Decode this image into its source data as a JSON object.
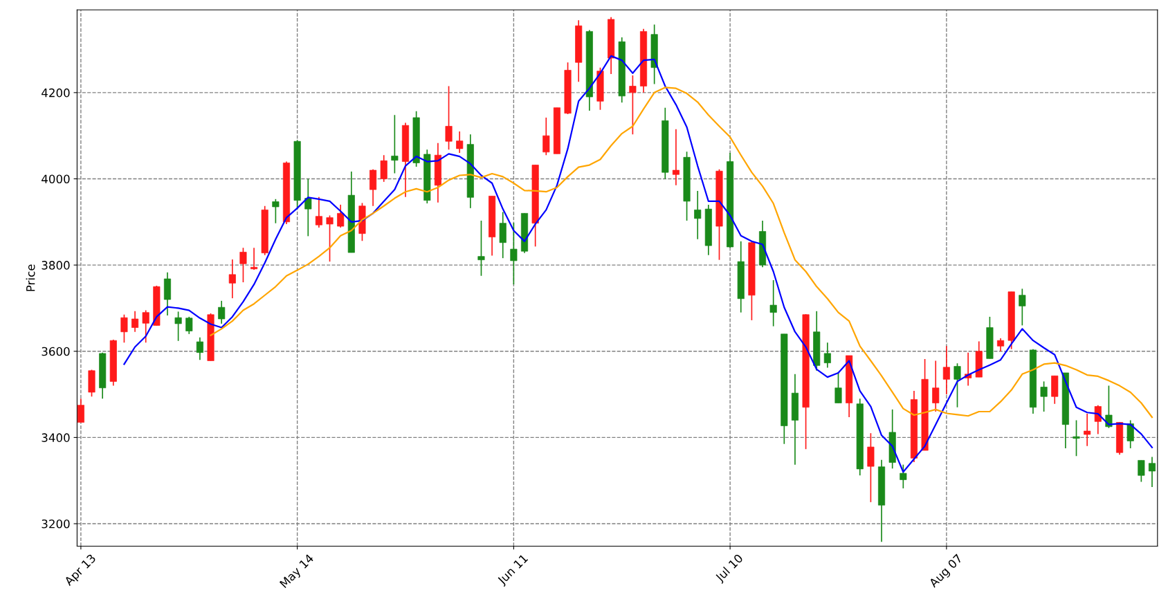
{
  "chart_data": {
    "type": "candlestick",
    "ylabel": "Price",
    "categories": [
      "Apr 13",
      null,
      null,
      null,
      null,
      null,
      null,
      null,
      null,
      null,
      null,
      null,
      null,
      null,
      null,
      null,
      null,
      null,
      null,
      null,
      "May 14",
      null,
      null,
      null,
      null,
      null,
      null,
      null,
      null,
      null,
      null,
      null,
      null,
      null,
      null,
      null,
      null,
      null,
      null,
      null,
      "Jun 11",
      null,
      null,
      null,
      null,
      null,
      null,
      null,
      null,
      null,
      null,
      null,
      null,
      null,
      null,
      null,
      null,
      null,
      null,
      null,
      "Jul 10",
      null,
      null,
      null,
      null,
      null,
      null,
      null,
      null,
      null,
      null,
      null,
      null,
      null,
      null,
      null,
      null,
      null,
      null,
      null,
      "Aug 07",
      null,
      null,
      null,
      null,
      null,
      null,
      null,
      null,
      null,
      null,
      null,
      null,
      null,
      null,
      null,
      null,
      null,
      null,
      null
    ],
    "ohlc": [
      [
        3435,
        3490,
        3435,
        3475
      ],
      [
        3505,
        3557,
        3495,
        3555
      ],
      [
        3595,
        3597,
        3490,
        3515
      ],
      [
        3530,
        3627,
        3520,
        3625
      ],
      [
        3645,
        3685,
        3620,
        3678
      ],
      [
        3655,
        3693,
        3645,
        3675
      ],
      [
        3665,
        3695,
        3620,
        3690
      ],
      [
        3660,
        3752,
        3660,
        3750
      ],
      [
        3768,
        3783,
        3683,
        3720
      ],
      [
        3678,
        3692,
        3624,
        3664
      ],
      [
        3677,
        3680,
        3640,
        3647
      ],
      [
        3622,
        3632,
        3580,
        3597
      ],
      [
        3578,
        3688,
        3578,
        3685
      ],
      [
        3702,
        3717,
        3664,
        3675
      ],
      [
        3758,
        3813,
        3723,
        3778
      ],
      [
        3803,
        3840,
        3760,
        3830
      ],
      [
        3791,
        3840,
        3789,
        3795
      ],
      [
        3828,
        3937,
        3823,
        3928
      ],
      [
        3947,
        3953,
        3897,
        3935
      ],
      [
        3900,
        4040,
        3895,
        4037
      ],
      [
        4087,
        4090,
        3930,
        3950
      ],
      [
        3955,
        4000,
        3867,
        3930
      ],
      [
        3893,
        3958,
        3887,
        3913
      ],
      [
        3895,
        3915,
        3808,
        3910
      ],
      [
        3890,
        3940,
        3887,
        3920
      ],
      [
        3962,
        4017,
        3829,
        3829
      ],
      [
        3873,
        3944,
        3856,
        3937
      ],
      [
        3975,
        4022,
        3937,
        4020
      ],
      [
        4000,
        4055,
        3993,
        4042
      ],
      [
        4053,
        4148,
        4013,
        4043
      ],
      [
        4040,
        4130,
        3958,
        4124
      ],
      [
        4142,
        4157,
        4028,
        4037
      ],
      [
        4057,
        4068,
        3943,
        3950
      ],
      [
        3985,
        4083,
        3945,
        4055
      ],
      [
        4087,
        4215,
        4068,
        4122
      ],
      [
        4070,
        4110,
        4060,
        4088
      ],
      [
        4080,
        4103,
        3932,
        3957
      ],
      [
        3820,
        3903,
        3775,
        3812
      ],
      [
        3865,
        3960,
        3822,
        3960
      ],
      [
        3897,
        3923,
        3816,
        3852
      ],
      [
        3837,
        3898,
        3755,
        3810
      ],
      [
        3920,
        3920,
        3828,
        3832
      ],
      [
        3897,
        4032,
        3843,
        4032
      ],
      [
        4062,
        4142,
        4055,
        4100
      ],
      [
        4058,
        4165,
        4058,
        4165
      ],
      [
        4152,
        4270,
        4150,
        4252
      ],
      [
        4270,
        4368,
        4225,
        4355
      ],
      [
        4342,
        4345,
        4158,
        4190
      ],
      [
        4180,
        4258,
        4160,
        4250
      ],
      [
        4280,
        4375,
        4243,
        4370
      ],
      [
        4318,
        4328,
        4177,
        4192
      ],
      [
        4200,
        4240,
        4103,
        4215
      ],
      [
        4215,
        4348,
        4200,
        4342
      ],
      [
        4335,
        4358,
        4220,
        4258
      ],
      [
        4135,
        4165,
        4000,
        4015
      ],
      [
        4010,
        4115,
        3985,
        4020
      ],
      [
        4050,
        4063,
        3903,
        3948
      ],
      [
        3928,
        3972,
        3860,
        3908
      ],
      [
        3930,
        3940,
        3823,
        3845
      ],
      [
        3890,
        4022,
        3812,
        4018
      ],
      [
        4040,
        4060,
        3840,
        3842
      ],
      [
        3808,
        3855,
        3690,
        3722
      ],
      [
        3730,
        3855,
        3672,
        3852
      ],
      [
        3878,
        3903,
        3795,
        3800
      ],
      [
        3707,
        3765,
        3658,
        3690
      ],
      [
        3640,
        3640,
        3385,
        3427
      ],
      [
        3503,
        3547,
        3337,
        3440
      ],
      [
        3470,
        3686,
        3373,
        3685
      ],
      [
        3645,
        3693,
        3555,
        3567
      ],
      [
        3595,
        3620,
        3562,
        3573
      ],
      [
        3515,
        3552,
        3480,
        3480
      ],
      [
        3480,
        3590,
        3447,
        3590
      ],
      [
        3478,
        3490,
        3312,
        3327
      ],
      [
        3333,
        3410,
        3250,
        3378
      ],
      [
        3332,
        3348,
        3158,
        3243
      ],
      [
        3412,
        3465,
        3328,
        3342
      ],
      [
        3317,
        3337,
        3282,
        3302
      ],
      [
        3352,
        3508,
        3343,
        3488
      ],
      [
        3370,
        3582,
        3370,
        3535
      ],
      [
        3480,
        3578,
        3460,
        3515
      ],
      [
        3535,
        3612,
        3500,
        3563
      ],
      [
        3565,
        3572,
        3470,
        3535
      ],
      [
        3538,
        3597,
        3520,
        3547
      ],
      [
        3540,
        3623,
        3540,
        3600
      ],
      [
        3655,
        3680,
        3583,
        3583
      ],
      [
        3612,
        3630,
        3600,
        3625
      ],
      [
        3625,
        3738,
        3605,
        3738
      ],
      [
        3730,
        3745,
        3660,
        3705
      ],
      [
        3603,
        3605,
        3455,
        3470
      ],
      [
        3517,
        3530,
        3460,
        3495
      ],
      [
        3495,
        3543,
        3478,
        3543
      ],
      [
        3550,
        3550,
        3375,
        3430
      ],
      [
        3402,
        3440,
        3357,
        3398
      ],
      [
        3407,
        3455,
        3380,
        3415
      ],
      [
        3437,
        3475,
        3408,
        3472
      ],
      [
        3452,
        3520,
        3422,
        3425
      ],
      [
        3365,
        3435,
        3360,
        3435
      ],
      [
        3432,
        3440,
        3375,
        3392
      ],
      [
        3347,
        3347,
        3297,
        3312
      ],
      [
        3340,
        3355,
        3285,
        3322
      ]
    ],
    "colors": [
      "#ff1a1a",
      "#ff1a1a",
      "#1a8a1a",
      "#ff1a1a",
      "#ff1a1a",
      "#ff1a1a",
      "#ff1a1a",
      "#ff1a1a",
      "#1a8a1a",
      "#1a8a1a",
      "#1a8a1a",
      "#1a8a1a",
      "#ff1a1a",
      "#1a8a1a",
      "#ff1a1a",
      "#ff1a1a",
      "#ff1a1a",
      "#ff1a1a",
      "#1a8a1a",
      "#ff1a1a",
      "#1a8a1a",
      "#1a8a1a",
      "#ff1a1a",
      "#ff1a1a",
      "#ff1a1a",
      "#1a8a1a",
      "#ff1a1a",
      "#ff1a1a",
      "#ff1a1a",
      "#1a8a1a",
      "#ff1a1a",
      "#1a8a1a",
      "#1a8a1a",
      "#ff1a1a",
      "#ff1a1a",
      "#ff1a1a",
      "#1a8a1a",
      "#1a8a1a",
      "#ff1a1a",
      "#1a8a1a",
      "#1a8a1a",
      "#1a8a1a",
      "#ff1a1a",
      "#ff1a1a",
      "#ff1a1a",
      "#ff1a1a",
      "#ff1a1a",
      "#1a8a1a",
      "#ff1a1a",
      "#ff1a1a",
      "#1a8a1a",
      "#ff1a1a",
      "#ff1a1a",
      "#1a8a1a",
      "#1a8a1a",
      "#ff1a1a",
      "#1a8a1a",
      "#1a8a1a",
      "#1a8a1a",
      "#ff1a1a",
      "#1a8a1a",
      "#1a8a1a",
      "#ff1a1a",
      "#1a8a1a",
      "#1a8a1a",
      "#1a8a1a",
      "#1a8a1a",
      "#ff1a1a",
      "#1a8a1a",
      "#1a8a1a",
      "#1a8a1a",
      "#ff1a1a",
      "#1a8a1a",
      "#ff1a1a",
      "#1a8a1a",
      "#1a8a1a",
      "#1a8a1a",
      "#ff1a1a",
      "#ff1a1a",
      "#ff1a1a",
      "#ff1a1a",
      "#1a8a1a",
      "#ff1a1a",
      "#ff1a1a",
      "#1a8a1a",
      "#ff1a1a",
      "#ff1a1a",
      "#1a8a1a",
      "#1a8a1a",
      "#1a8a1a",
      "#ff1a1a",
      "#1a8a1a",
      "#1a8a1a",
      "#ff1a1a",
      "#ff1a1a",
      "#1a8a1a",
      "#ff1a1a",
      "#1a8a1a",
      "#1a8a1a",
      "#1a8a1a"
    ],
    "series": [
      {
        "type": "line",
        "color": "#0000ff",
        "values": [
          null,
          null,
          null,
          null,
          3570,
          3610,
          3635,
          3680,
          3703,
          3700,
          3695,
          3677,
          3663,
          3655,
          3680,
          3715,
          3755,
          3805,
          3860,
          3910,
          3932,
          3957,
          3953,
          3948,
          3925,
          3900,
          3903,
          3920,
          3948,
          3975,
          4030,
          4052,
          4040,
          4042,
          4058,
          4052,
          4035,
          4008,
          3990,
          3930,
          3880,
          3855,
          3895,
          3928,
          3985,
          4070,
          4180,
          4210,
          4245,
          4285,
          4275,
          4245,
          4275,
          4277,
          4215,
          4172,
          4120,
          4030,
          3948,
          3948,
          3915,
          3868,
          3855,
          3848,
          3785,
          3702,
          3645,
          3610,
          3558,
          3540,
          3550,
          3578,
          3508,
          3472,
          3405,
          3380,
          3320,
          3350,
          3380,
          3430,
          3480,
          3530,
          3545,
          3557,
          3568,
          3580,
          3617,
          3652,
          3625,
          3608,
          3592,
          3530,
          3470,
          3458,
          3455,
          3430,
          3432,
          3430,
          3408,
          3377
        ]
      },
      {
        "type": "line",
        "color": "#ffa500",
        "values": [
          null,
          null,
          null,
          null,
          null,
          null,
          null,
          null,
          null,
          null,
          null,
          null,
          3637,
          3652,
          3670,
          3695,
          3710,
          3730,
          3750,
          3775,
          3788,
          3802,
          3820,
          3840,
          3868,
          3880,
          3905,
          3920,
          3937,
          3955,
          3970,
          3977,
          3970,
          3980,
          3997,
          4008,
          4010,
          4003,
          4012,
          4005,
          3990,
          3973,
          3972,
          3970,
          3980,
          4005,
          4027,
          4032,
          4045,
          4077,
          4105,
          4122,
          4162,
          4200,
          4212,
          4210,
          4198,
          4178,
          4148,
          4122,
          4097,
          4055,
          4015,
          3983,
          3943,
          3875,
          3812,
          3785,
          3750,
          3722,
          3690,
          3670,
          3612,
          3578,
          3543,
          3505,
          3467,
          3452,
          3458,
          3465,
          3456,
          3453,
          3450,
          3460,
          3460,
          3483,
          3510,
          3547,
          3557,
          3570,
          3573,
          3567,
          3557,
          3545,
          3542,
          3532,
          3520,
          3505,
          3480,
          3447
        ]
      }
    ],
    "ylim": [
      3148,
      4392
    ],
    "yticks": [
      3200,
      3400,
      3600,
      3800,
      4000,
      4200
    ],
    "grid": true
  }
}
